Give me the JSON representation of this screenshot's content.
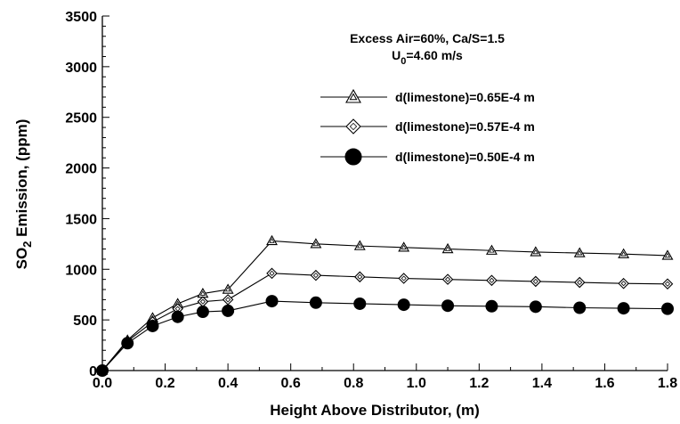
{
  "chart_data": {
    "type": "line",
    "title": "",
    "annotation_lines": [
      "Excess Air=60%, Ca/S=1.5",
      "U0=4.60 m/s"
    ],
    "xlabel": "Height Above Distributor, (m)",
    "ylabel": "SO2 Emission, (ppm)",
    "xlim": [
      0.0,
      1.8
    ],
    "ylim": [
      0,
      3500
    ],
    "x_ticks": [
      "0.0",
      "0.2",
      "0.4",
      "0.6",
      "0.8",
      "1.0",
      "1.2",
      "1.4",
      "1.6",
      "1.8"
    ],
    "y_ticks": [
      "0",
      "500",
      "1000",
      "1500",
      "2000",
      "2500",
      "3000",
      "3500"
    ],
    "legend_position": "top-right",
    "grid": false,
    "series": [
      {
        "name": "d(limestone)=0.65E-4 m",
        "marker": "triangle",
        "x": [
          0.0,
          0.08,
          0.16,
          0.24,
          0.32,
          0.4,
          0.54,
          0.68,
          0.82,
          0.96,
          1.1,
          1.24,
          1.38,
          1.52,
          1.66,
          1.8
        ],
        "values": [
          0,
          300,
          520,
          660,
          760,
          800,
          1280,
          1250,
          1230,
          1215,
          1200,
          1185,
          1170,
          1160,
          1150,
          1135
        ]
      },
      {
        "name": "d(limestone)=0.57E-4 m",
        "marker": "diamond",
        "x": [
          0.0,
          0.08,
          0.16,
          0.24,
          0.32,
          0.4,
          0.54,
          0.68,
          0.82,
          0.96,
          1.1,
          1.24,
          1.38,
          1.52,
          1.66,
          1.8
        ],
        "values": [
          0,
          290,
          480,
          610,
          680,
          700,
          960,
          940,
          925,
          910,
          900,
          890,
          880,
          870,
          860,
          855
        ]
      },
      {
        "name": "d(limestone)=0.50E-4 m",
        "marker": "circle",
        "x": [
          0.0,
          0.08,
          0.16,
          0.24,
          0.32,
          0.4,
          0.54,
          0.68,
          0.82,
          0.96,
          1.1,
          1.24,
          1.38,
          1.52,
          1.66,
          1.8
        ],
        "values": [
          0,
          270,
          440,
          530,
          580,
          590,
          685,
          670,
          660,
          650,
          640,
          635,
          630,
          620,
          615,
          610
        ]
      }
    ]
  }
}
